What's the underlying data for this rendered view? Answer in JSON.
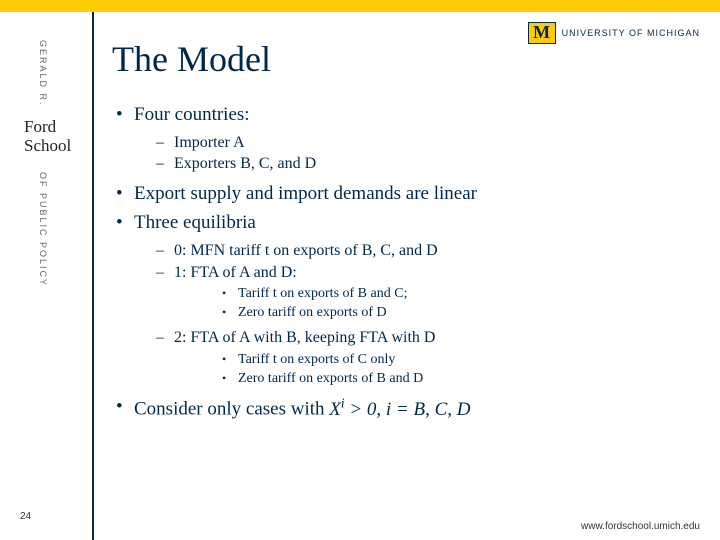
{
  "colors": {
    "maize": "#ffcb05",
    "blue": "#00274c",
    "text": "#00274c",
    "background": "#ffffff",
    "sidebar_text": "#666666"
  },
  "sidebar": {
    "top_text": "GERALD R.",
    "school_name": "Ford School",
    "bottom_text": "OF PUBLIC POLICY",
    "slide_number": "24"
  },
  "logo": {
    "mark": "M",
    "text": "UNIVERSITY OF MICHIGAN"
  },
  "title": "The Model",
  "bullets": {
    "b1": "Four countries:",
    "b1_sub": {
      "a": "Importer A",
      "b": "Exporters B, C, and D"
    },
    "b2": "Export supply and import demands are linear",
    "b3": "Three equilibria",
    "b3_sub": {
      "a": "0:  MFN tariff t on exports of B, C,  and D",
      "b": "1:  FTA of A and D:",
      "b_sub": {
        "a": "Tariff t on exports of B and C;",
        "b": "Zero tariff on exports of D"
      },
      "c": "2: FTA of A with B, keeping FTA with D",
      "c_sub": {
        "a": "Tariff t on exports of C only",
        "b": "Zero tariff on exports of B and D"
      }
    },
    "b4": "Consider only cases with  ",
    "b4_formula_html": "X<sup>i</sup> > 0, i = B, C, D"
  },
  "footer": {
    "url": "www.fordschool.umich.edu"
  },
  "typography": {
    "title_fontsize": 36,
    "level1_fontsize": 19,
    "level2_fontsize": 16,
    "level3_fontsize": 14,
    "font_family": "Georgia, serif"
  }
}
